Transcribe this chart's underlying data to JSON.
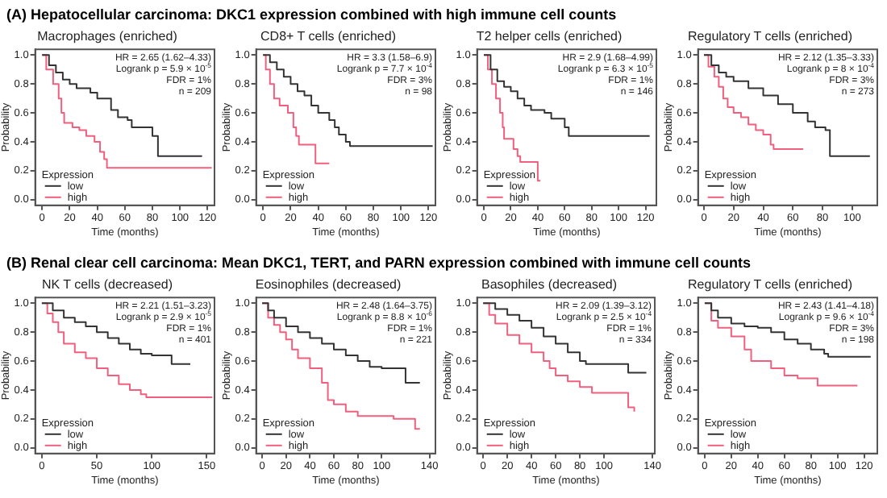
{
  "chart_data": [
    {
      "type": "step",
      "subtitle": "(A) Hepatocellular carcinoma: DKC1 expression combined with high immune cell counts",
      "title": "Macrophages (enriched)",
      "xlabel": "Time (months)",
      "ylabel": "Probability",
      "legend_title": "Expression",
      "legend": "bottom left",
      "xlim": [
        -5,
        125
      ],
      "xticks": [
        0,
        20,
        40,
        60,
        80,
        100,
        120
      ],
      "ylim": [
        -0.04,
        1.04
      ],
      "yticks": [
        {
          "value": 0,
          "label": "0.0"
        },
        {
          "value": 0.2,
          "label": "0.2"
        },
        {
          "value": 0.4,
          "label": "0.4"
        },
        {
          "value": 0.6,
          "label": "0.6"
        },
        {
          "value": 0.8,
          "label": "0.8"
        },
        {
          "value": 1,
          "label": "1.0"
        }
      ],
      "annotations": [
        "HR = 2.65 (1.62–4.33)",
        "Logrank p = 5.9 × 10$^{-5}$",
        "FDR = 1%",
        "n = 209"
      ],
      "series": [
        {
          "name": "low",
          "color": "#333333",
          "x": [
            0,
            5,
            10,
            15,
            20,
            25,
            35,
            40,
            50,
            55,
            62,
            65,
            75,
            80,
            84,
            116
          ],
          "values": [
            1,
            0.93,
            0.88,
            0.83,
            0.8,
            0.77,
            0.74,
            0.7,
            0.62,
            0.57,
            0.55,
            0.5,
            0.5,
            0.44,
            0.3,
            0.3
          ]
        },
        {
          "name": "high",
          "color": "#f0607e",
          "x": [
            0,
            3,
            8,
            12,
            14,
            16,
            22,
            27,
            32,
            38,
            42,
            45,
            47,
            123
          ],
          "values": [
            1,
            0.9,
            0.8,
            0.7,
            0.6,
            0.53,
            0.5,
            0.48,
            0.44,
            0.4,
            0.33,
            0.28,
            0.22,
            0.22
          ]
        }
      ]
    },
    {
      "type": "step",
      "title": "CD8+ T cells (enriched)",
      "xlabel": "Time (months)",
      "ylabel": "Probability",
      "legend_title": "Expression",
      "legend": "bottom left",
      "xlim": [
        -5,
        125
      ],
      "xticks": [
        0,
        20,
        40,
        60,
        80,
        100,
        120
      ],
      "ylim": [
        -0.04,
        1.04
      ],
      "yticks": [
        {
          "value": 0,
          "label": "0.0"
        },
        {
          "value": 0.2,
          "label": "0.2"
        },
        {
          "value": 0.4,
          "label": "0.4"
        },
        {
          "value": 0.6,
          "label": "0.6"
        },
        {
          "value": 0.8,
          "label": "0.8"
        },
        {
          "value": 1,
          "label": "1.0"
        }
      ],
      "annotations": [
        "HR = 3.3 (1.58–6.9)",
        "Logrank p = 7.7 × 10$^{-4}$",
        "FDR = 3%",
        "n = 98"
      ],
      "series": [
        {
          "name": "low",
          "color": "#333333",
          "x": [
            0,
            5,
            10,
            15,
            20,
            25,
            30,
            35,
            40,
            48,
            52,
            55,
            60,
            63,
            123
          ],
          "values": [
            1,
            0.95,
            0.9,
            0.85,
            0.8,
            0.75,
            0.72,
            0.65,
            0.6,
            0.55,
            0.5,
            0.45,
            0.4,
            0.37,
            0.37
          ]
        },
        {
          "name": "high",
          "color": "#f0607e",
          "x": [
            0,
            2,
            5,
            8,
            12,
            18,
            22,
            24,
            26,
            37,
            38,
            48
          ],
          "values": [
            1,
            0.9,
            0.8,
            0.7,
            0.65,
            0.6,
            0.5,
            0.44,
            0.38,
            0.38,
            0.25,
            0.25
          ]
        }
      ]
    },
    {
      "type": "step",
      "title": "T2 helper cells (enriched)",
      "xlabel": "Time (months)",
      "ylabel": "Probability",
      "legend_title": "Expression",
      "legend": "bottom left",
      "xlim": [
        -5,
        128
      ],
      "xticks": [
        0,
        20,
        40,
        60,
        80,
        100,
        120
      ],
      "ylim": [
        -0.04,
        1.04
      ],
      "yticks": [
        {
          "value": 0,
          "label": "0.0"
        },
        {
          "value": 0.2,
          "label": "0.2"
        },
        {
          "value": 0.4,
          "label": "0.4"
        },
        {
          "value": 0.6,
          "label": "0.6"
        },
        {
          "value": 0.8,
          "label": "0.8"
        },
        {
          "value": 1,
          "label": "1.0"
        }
      ],
      "annotations": [
        "HR = 2.9 (1.68–4.99)",
        "Logrank p = 6.3 × 10$^{-5}$",
        "FDR = 1%",
        "n = 146"
      ],
      "series": [
        {
          "name": "low",
          "color": "#333333",
          "x": [
            0,
            5,
            10,
            15,
            20,
            25,
            30,
            35,
            45,
            50,
            60,
            63,
            123
          ],
          "values": [
            1,
            0.9,
            0.82,
            0.78,
            0.75,
            0.7,
            0.65,
            0.62,
            0.6,
            0.56,
            0.5,
            0.44,
            0.44
          ]
        },
        {
          "name": "high",
          "color": "#f0607e",
          "x": [
            0,
            3,
            6,
            9,
            12,
            14,
            15,
            22,
            25,
            27,
            38,
            40,
            42
          ],
          "values": [
            1,
            0.9,
            0.8,
            0.7,
            0.6,
            0.5,
            0.42,
            0.35,
            0.3,
            0.26,
            0.26,
            0.13,
            0.13
          ]
        }
      ]
    },
    {
      "type": "step",
      "title": "Regulatory T cells (enriched)",
      "xlabel": "Time (months)",
      "ylabel": "Probability",
      "legend_title": "Expression",
      "legend": "bottom left",
      "xlim": [
        -4,
        117
      ],
      "xticks": [
        0,
        20,
        40,
        60,
        80,
        100
      ],
      "ylim": [
        -0.04,
        1.04
      ],
      "yticks": [
        {
          "value": 0,
          "label": "0.0"
        },
        {
          "value": 0.2,
          "label": "0.2"
        },
        {
          "value": 0.4,
          "label": "0.4"
        },
        {
          "value": 0.6,
          "label": "0.6"
        },
        {
          "value": 0.8,
          "label": "0.8"
        },
        {
          "value": 1,
          "label": "1.0"
        }
      ],
      "annotations": [
        "HR = 2.12 (1.35–3.33)",
        "Logrank p = 8 × 10$^{-4}$",
        "FDR = 3%",
        "n = 273"
      ],
      "series": [
        {
          "name": "low",
          "color": "#333333",
          "x": [
            0,
            5,
            10,
            15,
            20,
            30,
            40,
            50,
            60,
            70,
            75,
            82,
            85,
            112
          ],
          "values": [
            1,
            0.93,
            0.88,
            0.85,
            0.82,
            0.77,
            0.72,
            0.66,
            0.6,
            0.54,
            0.5,
            0.48,
            0.3,
            0.3
          ]
        },
        {
          "name": "high",
          "color": "#f0607e",
          "x": [
            0,
            3,
            7,
            10,
            13,
            16,
            20,
            25,
            30,
            35,
            40,
            45,
            47,
            67
          ],
          "values": [
            1,
            0.92,
            0.85,
            0.78,
            0.7,
            0.64,
            0.6,
            0.57,
            0.52,
            0.48,
            0.45,
            0.38,
            0.35,
            0.35
          ]
        }
      ]
    },
    {
      "type": "step",
      "subtitle": "(B) Renal clear cell carcinoma: Mean DKC1, TERT, and PARN expression combined with immune cell counts",
      "title": "NK T cells (decreased)",
      "xlabel": "Time (months)",
      "ylabel": "Probability",
      "legend_title": "Expression",
      "legend": "bottom left",
      "xlim": [
        -6,
        157
      ],
      "xticks": [
        0,
        50,
        100,
        150
      ],
      "ylim": [
        -0.04,
        1.04
      ],
      "yticks": [
        {
          "value": 0,
          "label": "0.0"
        },
        {
          "value": 0.2,
          "label": "0.2"
        },
        {
          "value": 0.4,
          "label": "0.4"
        },
        {
          "value": 0.6,
          "label": "0.6"
        },
        {
          "value": 0.8,
          "label": "0.8"
        },
        {
          "value": 1,
          "label": "1.0"
        }
      ],
      "annotations": [
        "HR = 2.21 (1.51–3.23)",
        "Logrank p = 2.9 × 10$^{-5}$",
        "FDR = 1%",
        "n = 401"
      ],
      "series": [
        {
          "name": "low",
          "color": "#333333",
          "x": [
            0,
            10,
            20,
            30,
            40,
            50,
            60,
            70,
            80,
            90,
            100,
            118,
            135
          ],
          "values": [
            1,
            0.95,
            0.9,
            0.87,
            0.84,
            0.8,
            0.76,
            0.72,
            0.68,
            0.65,
            0.64,
            0.58,
            0.58
          ]
        },
        {
          "name": "high",
          "color": "#f0607e",
          "x": [
            0,
            5,
            10,
            15,
            20,
            30,
            40,
            50,
            60,
            70,
            80,
            90,
            95,
            155
          ],
          "values": [
            1,
            0.93,
            0.87,
            0.8,
            0.72,
            0.66,
            0.62,
            0.55,
            0.5,
            0.44,
            0.4,
            0.37,
            0.35,
            0.35
          ]
        }
      ]
    },
    {
      "type": "step",
      "title": "Eosinophiles (decreased)",
      "xlabel": "Time (months)",
      "ylabel": "Probability",
      "legend_title": "Expression",
      "legend": "bottom left",
      "xlim": [
        -5,
        145
      ],
      "xticks": [
        0,
        20,
        40,
        60,
        80,
        100,
        140
      ],
      "ylim": [
        -0.04,
        1.04
      ],
      "yticks": [
        {
          "value": 0,
          "label": "0.0"
        },
        {
          "value": 0.2,
          "label": "0.2"
        },
        {
          "value": 0.4,
          "label": "0.4"
        },
        {
          "value": 0.6,
          "label": "0.6"
        },
        {
          "value": 0.8,
          "label": "0.8"
        },
        {
          "value": 1,
          "label": "1.0"
        }
      ],
      "annotations": [
        "HR = 2.48 (1.64–3.75)",
        "Logrank p = 8.8 × 10$^{-6}$",
        "FDR = 1%",
        "n = 221"
      ],
      "series": [
        {
          "name": "low",
          "color": "#333333",
          "x": [
            0,
            5,
            10,
            20,
            30,
            40,
            50,
            60,
            70,
            80,
            90,
            100,
            118,
            120,
            132
          ],
          "values": [
            1,
            0.95,
            0.9,
            0.84,
            0.8,
            0.76,
            0.72,
            0.68,
            0.64,
            0.6,
            0.56,
            0.55,
            0.55,
            0.45,
            0.45
          ]
        },
        {
          "name": "high",
          "color": "#f0607e",
          "x": [
            0,
            5,
            10,
            15,
            20,
            25,
            30,
            40,
            50,
            55,
            60,
            70,
            80,
            110,
            125,
            128,
            132
          ],
          "values": [
            1,
            0.9,
            0.85,
            0.8,
            0.75,
            0.68,
            0.62,
            0.55,
            0.45,
            0.33,
            0.3,
            0.25,
            0.22,
            0.2,
            0.2,
            0.13,
            0.13
          ]
        }
      ]
    },
    {
      "type": "step",
      "title": "Basophiles (decreased)",
      "xlabel": "Time (months)",
      "ylabel": "Probability",
      "legend_title": "Expression",
      "legend": "bottom left",
      "xlim": [
        -5,
        142
      ],
      "xticks": [
        0,
        20,
        40,
        60,
        80,
        100,
        140
      ],
      "ylim": [
        -0.04,
        1.04
      ],
      "yticks": [
        {
          "value": 0,
          "label": "0.0"
        },
        {
          "value": 0.2,
          "label": "0.2"
        },
        {
          "value": 0.4,
          "label": "0.4"
        },
        {
          "value": 0.6,
          "label": "0.6"
        },
        {
          "value": 0.8,
          "label": "0.8"
        },
        {
          "value": 1,
          "label": "1.0"
        }
      ],
      "annotations": [
        "HR = 2.09 (1.39–3.12)",
        "Logrank p = 2.5 × 10$^{-4}$",
        "FDR = 1%",
        "n = 334"
      ],
      "series": [
        {
          "name": "low",
          "color": "#333333",
          "x": [
            0,
            10,
            20,
            30,
            40,
            50,
            60,
            70,
            80,
            85,
            110,
            120,
            135
          ],
          "values": [
            1,
            0.96,
            0.92,
            0.88,
            0.83,
            0.77,
            0.72,
            0.66,
            0.6,
            0.58,
            0.58,
            0.52,
            0.52
          ]
        },
        {
          "name": "high",
          "color": "#f0607e",
          "x": [
            0,
            5,
            10,
            20,
            30,
            40,
            50,
            55,
            60,
            70,
            80,
            90,
            110,
            120,
            125
          ],
          "values": [
            1,
            0.92,
            0.86,
            0.78,
            0.72,
            0.66,
            0.6,
            0.55,
            0.5,
            0.46,
            0.42,
            0.38,
            0.38,
            0.28,
            0.25
          ]
        }
      ]
    },
    {
      "type": "step",
      "title": "Regulatory T cells (enriched)",
      "xlabel": "Time (months)",
      "ylabel": "Probability",
      "legend_title": "Expression",
      "legend": "bottom left",
      "xlim": [
        -5,
        130
      ],
      "xticks": [
        0,
        20,
        40,
        60,
        80,
        100,
        120
      ],
      "ylim": [
        -0.04,
        1.04
      ],
      "yticks": [
        {
          "value": 0,
          "label": "0.0"
        },
        {
          "value": 0.2,
          "label": "0.2"
        },
        {
          "value": 0.4,
          "label": "0.4"
        },
        {
          "value": 0.6,
          "label": "0.6"
        },
        {
          "value": 0.8,
          "label": "0.8"
        },
        {
          "value": 1,
          "label": "1.0"
        }
      ],
      "annotations": [
        "HR = 2.43 (1.41–4.18)",
        "Logrank p = 9.6 × 10$^{-4}$",
        "FDR = 3%",
        "n = 198"
      ],
      "series": [
        {
          "name": "low",
          "color": "#333333",
          "x": [
            0,
            5,
            10,
            20,
            30,
            40,
            50,
            60,
            70,
            80,
            90,
            93,
            125
          ],
          "values": [
            1,
            0.95,
            0.9,
            0.86,
            0.84,
            0.83,
            0.8,
            0.75,
            0.72,
            0.68,
            0.65,
            0.63,
            0.63
          ]
        },
        {
          "name": "high",
          "color": "#f0607e",
          "x": [
            0,
            5,
            10,
            20,
            30,
            35,
            45,
            50,
            60,
            70,
            85,
            115
          ],
          "values": [
            1,
            0.88,
            0.83,
            0.77,
            0.68,
            0.6,
            0.6,
            0.55,
            0.5,
            0.48,
            0.43,
            0.43
          ]
        }
      ]
    }
  ]
}
